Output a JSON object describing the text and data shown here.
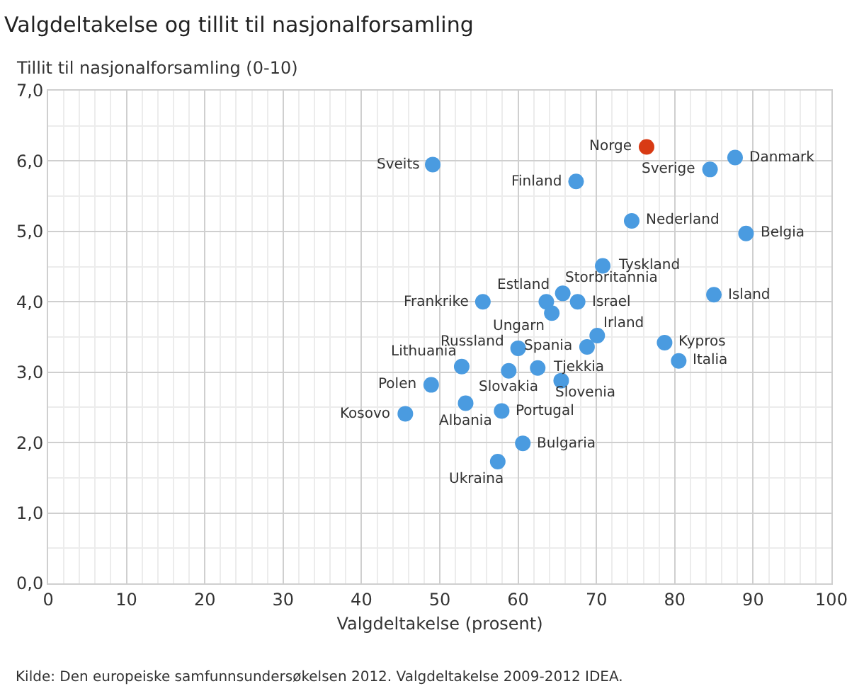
{
  "chart_data": {
    "type": "scatter",
    "title": "Valgdeltakelse og tillit til nasjonalforsamling",
    "ylabel": "Tillit til nasjonalforsamling (0-10)",
    "xlabel": "Valgdeltakelse (prosent)",
    "annotations": [
      "Kilde: Den europeiske samfunnsundersøkelsen 2012. Valgdeltakelse 2009-2012 IDEA.",
      {
        "text": "Sveits",
        "x": 49.1,
        "y": 5.95
      },
      {
        "text": "Norge",
        "x": 76.4,
        "y": 6.2
      },
      {
        "text": "Danmark",
        "x": 87.7,
        "y": 6.05
      },
      {
        "text": "Sverige",
        "x": 84.5,
        "y": 5.88
      },
      {
        "text": "Finland",
        "x": 67.4,
        "y": 5.71
      },
      {
        "text": "Nederland",
        "x": 74.5,
        "y": 5.15
      },
      {
        "text": "Belgia",
        "x": 89.1,
        "y": 4.97
      },
      {
        "text": "Tyskland",
        "x": 70.8,
        "y": 4.51
      },
      {
        "text": "Storbritannia",
        "x": 65.7,
        "y": 4.12
      },
      {
        "text": "Estland",
        "x": 63.6,
        "y": 4.0
      },
      {
        "text": "Israel",
        "x": 67.6,
        "y": 4.0
      },
      {
        "text": "Frankrike",
        "x": 55.5,
        "y": 4.0
      },
      {
        "text": "Island",
        "x": 85.0,
        "y": 4.1
      },
      {
        "text": "Ungarn",
        "x": 64.3,
        "y": 3.84
      },
      {
        "text": "Irland",
        "x": 70.1,
        "y": 3.52
      },
      {
        "text": "Spania",
        "x": 68.8,
        "y": 3.36
      },
      {
        "text": "Kypros",
        "x": 78.7,
        "y": 3.42
      },
      {
        "text": "Italia",
        "x": 80.5,
        "y": 3.16
      },
      {
        "text": "Russland",
        "x": 60.0,
        "y": 3.34
      },
      {
        "text": "Lithuania",
        "x": 52.8,
        "y": 3.08
      },
      {
        "text": "Slovakia",
        "x": 58.8,
        "y": 3.02
      },
      {
        "text": "Tjekkia",
        "x": 62.5,
        "y": 3.06
      },
      {
        "text": "Slovenia",
        "x": 65.5,
        "y": 2.88
      },
      {
        "text": "Polen",
        "x": 48.9,
        "y": 2.82
      },
      {
        "text": "Kosovo",
        "x": 45.6,
        "y": 2.41
      },
      {
        "text": "Albania",
        "x": 53.3,
        "y": 2.56
      },
      {
        "text": "Portugal",
        "x": 57.9,
        "y": 2.45
      },
      {
        "text": "Bulgaria",
        "x": 60.6,
        "y": 1.99
      },
      {
        "text": "Ukraina",
        "x": 57.4,
        "y": 1.73
      }
    ],
    "marker": "circle",
    "grid": true,
    "legend": false,
    "xlim": [
      0,
      100
    ],
    "xticks": [
      0,
      10,
      20,
      30,
      40,
      50,
      60,
      70,
      80,
      90,
      100
    ],
    "ylim": [
      0,
      7
    ],
    "yticks": [
      {
        "value": 0,
        "label": "0,0"
      },
      {
        "value": 1,
        "label": "1,0"
      },
      {
        "value": 2,
        "label": "2,0"
      },
      {
        "value": 3,
        "label": "3,0"
      },
      {
        "value": 4,
        "label": "4,0"
      },
      {
        "value": 5,
        "label": "5,0"
      },
      {
        "value": 6,
        "label": "6,0"
      },
      {
        "value": 7,
        "label": "7,0"
      }
    ],
    "series": [
      {
        "x": [
          49.1,
          76.4,
          87.7,
          84.5,
          67.4,
          74.5,
          89.1,
          70.8,
          65.7,
          63.6,
          67.6,
          55.5,
          85.0,
          64.3,
          70.1,
          68.8,
          78.7,
          80.5,
          60.0,
          52.8,
          58.8,
          62.5,
          65.5,
          48.9,
          45.6,
          53.3,
          57.9,
          60.6,
          57.4
        ],
        "values": [
          5.95,
          6.2,
          6.05,
          5.88,
          5.71,
          5.15,
          4.97,
          4.51,
          4.12,
          4.0,
          4.0,
          4.0,
          4.1,
          3.84,
          3.52,
          3.36,
          3.42,
          3.16,
          3.34,
          3.08,
          3.02,
          3.06,
          2.88,
          2.82,
          2.41,
          2.56,
          2.45,
          1.99,
          1.73
        ],
        "colors": [
          "#4a9be0",
          "#d83a14",
          "#4a9be0",
          "#4a9be0",
          "#4a9be0",
          "#4a9be0",
          "#4a9be0",
          "#4a9be0",
          "#4a9be0",
          "#4a9be0",
          "#4a9be0",
          "#4a9be0",
          "#4a9be0",
          "#4a9be0",
          "#4a9be0",
          "#4a9be0",
          "#4a9be0",
          "#4a9be0",
          "#4a9be0",
          "#4a9be0",
          "#4a9be0",
          "#4a9be0",
          "#4a9be0",
          "#4a9be0",
          "#4a9be0",
          "#4a9be0",
          "#4a9be0",
          "#4a9be0",
          "#4a9be0"
        ]
      }
    ]
  }
}
